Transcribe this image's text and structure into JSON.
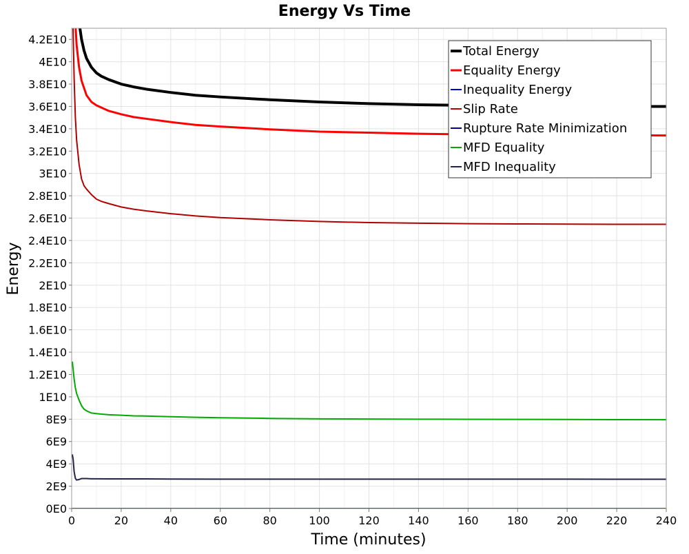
{
  "chart_data": {
    "type": "line",
    "title": "Energy Vs Time",
    "xlabel": "Time (minutes)",
    "ylabel": "Energy",
    "xlim": [
      0,
      240
    ],
    "ylim": [
      0,
      43000000000
    ],
    "xticks": [
      0,
      20,
      40,
      60,
      80,
      100,
      120,
      140,
      160,
      180,
      200,
      220,
      240
    ],
    "xtick_labels": [
      "0",
      "20",
      "40",
      "60",
      "80",
      "100",
      "120",
      "140",
      "160",
      "180",
      "200",
      "220",
      "240"
    ],
    "yticks": [
      0,
      2000000000,
      4000000000,
      6000000000,
      8000000000,
      10000000000,
      12000000000,
      14000000000,
      16000000000,
      18000000000,
      20000000000,
      22000000000,
      24000000000,
      26000000000,
      28000000000,
      30000000000,
      32000000000,
      34000000000,
      36000000000,
      38000000000,
      40000000000,
      42000000000
    ],
    "ytick_labels": [
      "0E0",
      "2E9",
      "4E9",
      "6E9",
      "8E9",
      "1E10",
      "1.2E10",
      "1.4E10",
      "1.6E10",
      "1.8E10",
      "2E10",
      "2.2E10",
      "2.4E10",
      "2.6E10",
      "2.8E10",
      "3E10",
      "3.2E10",
      "3.4E10",
      "3.6E10",
      "3.8E10",
      "4E10",
      "4.2E10"
    ],
    "grid": true,
    "legend_position": "top-right",
    "series": [
      {
        "name": "Total Energy",
        "color": "#000000",
        "x": [
          3.0,
          4,
          5,
          6,
          8,
          10,
          12,
          15,
          20,
          25,
          30,
          40,
          50,
          60,
          80,
          100,
          120,
          140,
          160,
          180,
          200,
          220,
          240
        ],
        "y": [
          43500000000,
          42000000000,
          41000000000,
          40300000000,
          39500000000,
          39000000000,
          38700000000,
          38400000000,
          38000000000,
          37750000000,
          37550000000,
          37250000000,
          37000000000,
          36850000000,
          36600000000,
          36400000000,
          36250000000,
          36150000000,
          36100000000,
          36050000000,
          36020000000,
          36000000000,
          36000000000
        ]
      },
      {
        "name": "Equality Energy",
        "color": "#ff0000",
        "x": [
          1.5,
          2,
          3,
          4,
          6,
          8,
          10,
          12,
          15,
          20,
          25,
          30,
          40,
          50,
          60,
          80,
          100,
          120,
          140,
          160,
          180,
          200,
          220,
          240
        ],
        "y": [
          43500000000,
          41500000000,
          39500000000,
          38300000000,
          37000000000,
          36400000000,
          36100000000,
          35900000000,
          35600000000,
          35300000000,
          35050000000,
          34900000000,
          34600000000,
          34350000000,
          34200000000,
          33950000000,
          33750000000,
          33650000000,
          33550000000,
          33500000000,
          33450000000,
          33450000000,
          33420000000,
          33400000000
        ]
      },
      {
        "name": "Inequality Energy",
        "color": "#0000cc",
        "x": [
          0,
          240
        ],
        "y": [
          0,
          0
        ]
      },
      {
        "name": "Slip Rate",
        "color": "#b00000",
        "x": [
          0.5,
          1,
          1.5,
          2,
          3,
          4,
          5,
          6,
          8,
          10,
          12,
          15,
          20,
          25,
          30,
          40,
          50,
          60,
          80,
          100,
          120,
          140,
          160,
          180,
          200,
          220,
          240
        ],
        "y": [
          43500000000,
          38500000000,
          35000000000,
          33000000000,
          30800000000,
          29500000000,
          28900000000,
          28600000000,
          28100000000,
          27700000000,
          27500000000,
          27300000000,
          27000000000,
          26800000000,
          26650000000,
          26400000000,
          26200000000,
          26050000000,
          25850000000,
          25700000000,
          25600000000,
          25550000000,
          25500000000,
          25480000000,
          25460000000,
          25450000000,
          25450000000
        ]
      },
      {
        "name": "Rupture Rate Minimization",
        "color": "#000080",
        "x": [
          0,
          240
        ],
        "y": [
          0,
          0
        ]
      },
      {
        "name": "MFD Equality",
        "color": "#00aa00",
        "x": [
          0.3,
          1,
          1.5,
          2,
          3,
          4,
          5,
          6,
          8,
          10,
          12,
          15,
          20,
          25,
          30,
          40,
          50,
          60,
          80,
          100,
          120,
          140,
          160,
          180,
          200,
          220,
          240
        ],
        "y": [
          13100000000,
          11600000000,
          10800000000,
          10300000000,
          9700000000,
          9200000000,
          8900000000,
          8750000000,
          8550000000,
          8500000000,
          8450000000,
          8400000000,
          8350000000,
          8300000000,
          8280000000,
          8220000000,
          8170000000,
          8130000000,
          8070000000,
          8030000000,
          8010000000,
          8000000000,
          7990000000,
          7980000000,
          7970000000,
          7960000000,
          7950000000
        ]
      },
      {
        "name": "MFD Inequality",
        "color": "#22224a",
        "x": [
          0.3,
          0.6,
          1,
          1.5,
          2,
          3,
          4,
          6,
          8,
          10,
          15,
          20,
          30,
          40,
          60,
          80,
          100,
          120,
          140,
          160,
          180,
          200,
          220,
          240
        ],
        "y": [
          4800000000,
          4400000000,
          3300000000,
          2700000000,
          2550000000,
          2600000000,
          2680000000,
          2680000000,
          2660000000,
          2660000000,
          2650000000,
          2650000000,
          2650000000,
          2640000000,
          2630000000,
          2630000000,
          2630000000,
          2630000000,
          2630000000,
          2630000000,
          2630000000,
          2630000000,
          2620000000,
          2620000000
        ]
      }
    ]
  }
}
